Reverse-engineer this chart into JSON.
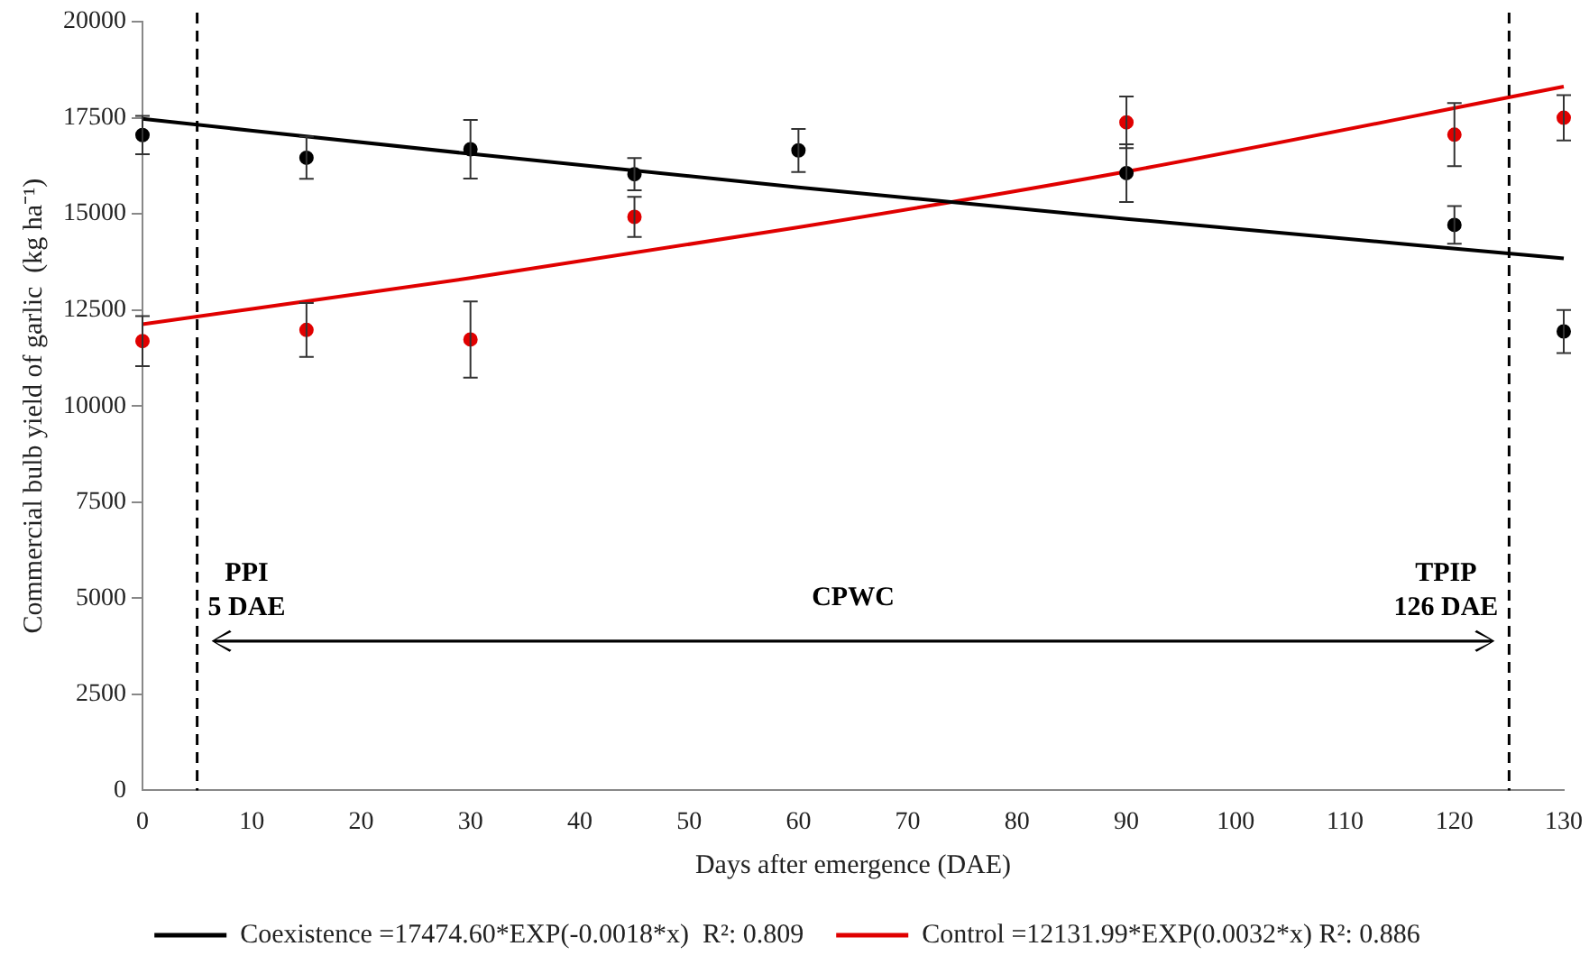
{
  "chart_data": {
    "type": "scatter",
    "xlabel": "Days after emergence (DAE)",
    "ylabel": "Commercial bulb yield of garlic  (kg ha⁻¹)",
    "xlim": [
      0,
      130
    ],
    "xticks": [
      0,
      10,
      20,
      30,
      40,
      50,
      60,
      70,
      80,
      90,
      100,
      110,
      120,
      130
    ],
    "ylim": [
      0,
      20000
    ],
    "yticks": [
      0,
      2500,
      5000,
      7500,
      10000,
      12500,
      15000,
      17500,
      20000
    ],
    "grid": false,
    "legend": "bottom",
    "marker": "circle",
    "series": [
      {
        "type": "scatter",
        "color": "#000000",
        "x": [
          0,
          15,
          30,
          45,
          60,
          90,
          120,
          130
        ],
        "values": [
          17050,
          16460,
          16680,
          16030,
          16650,
          16060,
          14710,
          11940
        ],
        "errors": [
          500,
          550,
          760,
          420,
          560,
          750,
          490,
          560
        ]
      },
      {
        "type": "scatter",
        "color": "#e00000",
        "x": [
          0,
          15,
          30,
          45,
          90,
          120,
          130
        ],
        "values": [
          11690,
          11980,
          11730,
          14920,
          17380,
          17060,
          17500
        ],
        "errors": [
          650,
          700,
          990,
          520,
          670,
          820,
          590
        ]
      },
      {
        "type": "line",
        "name": "Coexistence =17474.60*EXP(-0.0018*x)  R²: 0.809",
        "color": "#000000",
        "marker": "none",
        "line_style": "solid",
        "x": [
          0,
          30,
          60,
          90,
          130
        ],
        "values": [
          17470,
          16560,
          15690,
          14870,
          13840
        ]
      },
      {
        "type": "line",
        "name": "Control =12131.99*EXP(0.0032*x) R²: 0.886",
        "color": "#e00000",
        "marker": "none",
        "line_style": "solid",
        "x": [
          0,
          30,
          60,
          90,
          130
        ],
        "values": [
          12130,
          13330,
          14650,
          16100,
          18310
        ]
      }
    ],
    "ref_lines": [
      {
        "axis": "x",
        "value": 5,
        "color": "#000000",
        "line_style": "dashed"
      },
      {
        "axis": "x",
        "value": 125,
        "color": "#000000",
        "line_style": "dashed"
      }
    ],
    "annotations": [
      "PPI\n5 DAE",
      "CPWC",
      "TPIP\n126 DAE"
    ]
  }
}
